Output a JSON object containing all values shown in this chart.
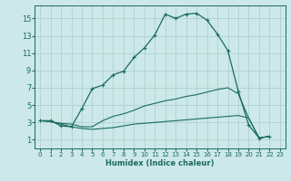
{
  "xlabel": "Humidex (Indice chaleur)",
  "bg_color": "#cce8e8",
  "line_color": "#1a6b5e",
  "grid_color": "#aacccc",
  "xlim": [
    -0.5,
    23.5
  ],
  "ylim": [
    0,
    16.5
  ],
  "yticks": [
    1,
    3,
    5,
    7,
    9,
    11,
    13,
    15
  ],
  "xticks": [
    0,
    1,
    2,
    3,
    4,
    5,
    6,
    7,
    8,
    9,
    10,
    11,
    12,
    13,
    14,
    15,
    16,
    17,
    18,
    19,
    20,
    21,
    22,
    23
  ],
  "line1_x": [
    0,
    1,
    2,
    3,
    4,
    5,
    6,
    7,
    8,
    9,
    10,
    11,
    12,
    13,
    14,
    15,
    16,
    17,
    18,
    19,
    20,
    21,
    22
  ],
  "line1_y": [
    3.2,
    3.2,
    2.6,
    2.5,
    4.6,
    6.9,
    7.3,
    8.5,
    8.9,
    10.5,
    11.6,
    13.1,
    15.5,
    15.0,
    15.5,
    15.6,
    14.8,
    13.2,
    11.3,
    6.6,
    2.7,
    1.2,
    1.4
  ],
  "line3_x": [
    0,
    1,
    2,
    3,
    4,
    5,
    6,
    7,
    8,
    9,
    10,
    11,
    12,
    13,
    14,
    15,
    16,
    17,
    18,
    19,
    20,
    21,
    22
  ],
  "line3_y": [
    3.2,
    3.1,
    2.9,
    2.8,
    2.5,
    2.5,
    3.2,
    3.7,
    4.0,
    4.4,
    4.9,
    5.2,
    5.5,
    5.7,
    6.0,
    6.2,
    6.5,
    6.8,
    7.0,
    6.3,
    3.5,
    1.2,
    1.4
  ],
  "line4_x": [
    0,
    1,
    2,
    3,
    4,
    5,
    6,
    7,
    8,
    9,
    10,
    11,
    12,
    13,
    14,
    15,
    16,
    17,
    18,
    19,
    20,
    21,
    22
  ],
  "line4_y": [
    3.2,
    3.1,
    2.8,
    2.5,
    2.3,
    2.2,
    2.3,
    2.4,
    2.6,
    2.8,
    2.9,
    3.0,
    3.1,
    3.2,
    3.3,
    3.4,
    3.5,
    3.6,
    3.7,
    3.8,
    3.5,
    1.2,
    1.4
  ],
  "ylabel_fontsize": 5.5,
  "xlabel_fontsize": 6,
  "tick_fontsize_x": 5,
  "tick_fontsize_y": 6
}
